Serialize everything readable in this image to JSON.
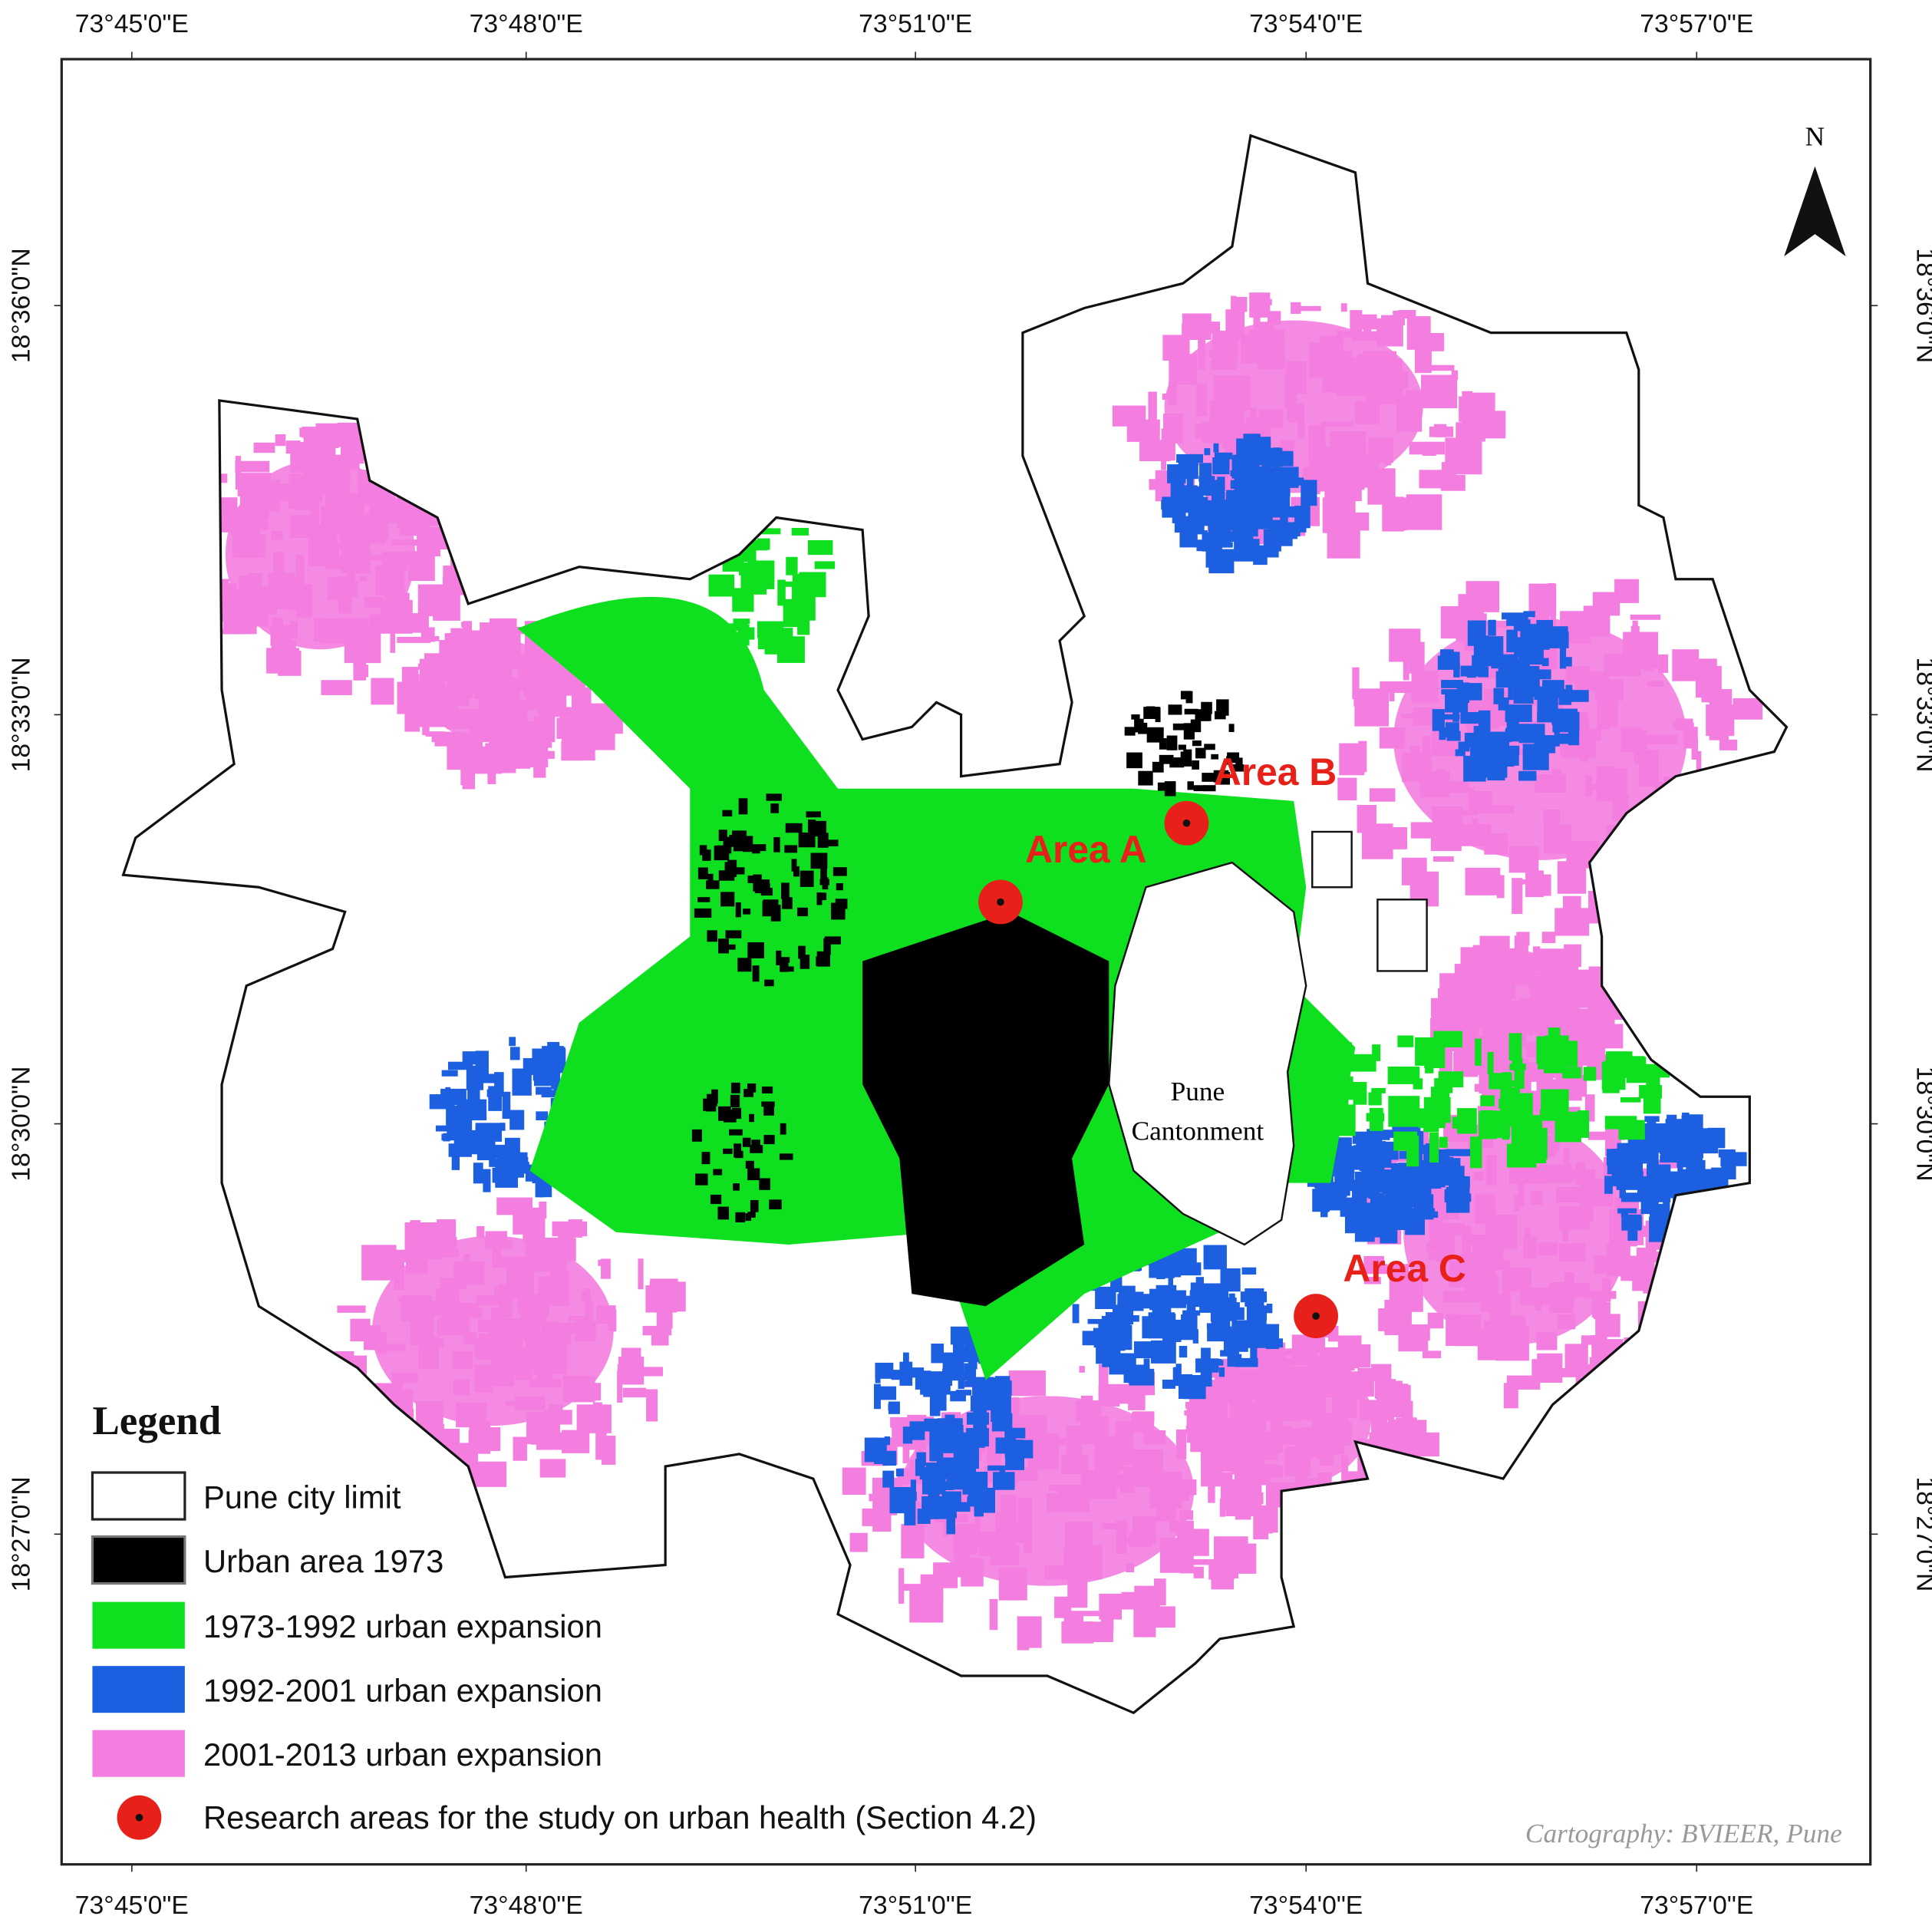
{
  "map": {
    "graticule": {
      "longitude_labels": [
        "73°45'0\"E",
        "73°48'0\"E",
        "73°51'0\"E",
        "73°54'0\"E",
        "73°57'0\"E"
      ],
      "latitude_labels": [
        "18°36'0\"N",
        "18°33'0\"N",
        "18°30'0\"N",
        "18°27'0\"N"
      ]
    },
    "north_arrow": "N",
    "place_label": [
      "Pune",
      "Cantonment"
    ],
    "research_areas": [
      "Area A",
      "Area B",
      "Area C"
    ],
    "legend": {
      "title": "Legend",
      "items": [
        "Pune city limit",
        "Urban area 1973",
        "1973-1992 urban expansion",
        "1992-2001 urban expansion",
        "2001-2013 urban expansion",
        "Research areas for the study on urban health (Section 4.2)"
      ]
    },
    "credit": "Cartography: BVIEER, Pune"
  }
}
